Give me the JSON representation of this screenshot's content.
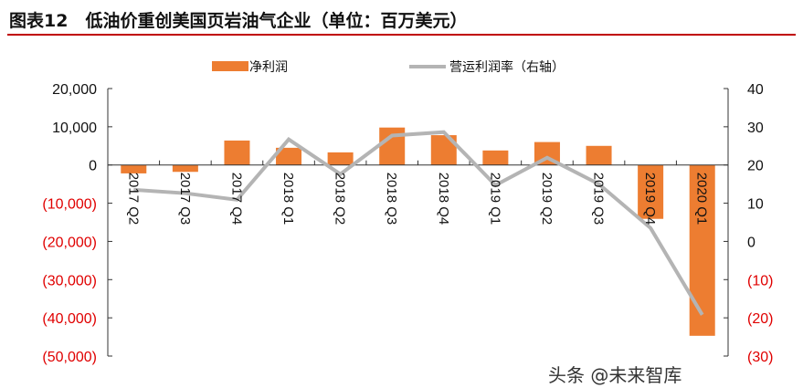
{
  "title": "图表12　低油价重创美国页岩油气企业（单位：百万美元）",
  "watermark": "头条 @未来智库",
  "colors": {
    "bar": "#ed7d31",
    "line": "#b4b4b4",
    "negative_tick": "#e00000",
    "axis": "#333333"
  },
  "chart_data": {
    "type": "bar+line",
    "categories": [
      "2017 Q2",
      "2017 Q3",
      "2017 Q4",
      "2018 Q1",
      "2018 Q2",
      "2018 Q3",
      "2018 Q4",
      "2019 Q1",
      "2019 Q2",
      "2019 Q3",
      "2019 Q4",
      "2020 Q1"
    ],
    "series": [
      {
        "name": "净利润",
        "type": "bar",
        "axis": "left",
        "values": [
          -2200,
          -1800,
          6400,
          4500,
          3300,
          9800,
          7800,
          3800,
          6000,
          5000,
          -14100,
          -44700
        ]
      },
      {
        "name": "营运利润率（右轴）",
        "type": "line",
        "axis": "right",
        "values": [
          13.5,
          12.6,
          10.9,
          26.7,
          17.6,
          27.7,
          28.6,
          14.7,
          21.9,
          15.0,
          3.5,
          -19.2
        ]
      }
    ],
    "left_axis": {
      "ylim": [
        -50000,
        20000
      ],
      "ticks": [
        20000,
        10000,
        0,
        -10000,
        -20000,
        -30000,
        -40000,
        -50000
      ],
      "tick_labels": [
        "20,000",
        "10,000",
        "0",
        "(10,000)",
        "(20,000)",
        "(30,000)",
        "(40,000)",
        "(50,000)"
      ]
    },
    "right_axis": {
      "ylim": [
        -30,
        40
      ],
      "ticks": [
        40,
        30,
        20,
        10,
        0,
        -10,
        -20,
        -30
      ],
      "tick_labels": [
        "40",
        "30",
        "20",
        "10",
        "0",
        "(10)",
        "(20)",
        "(30)"
      ]
    },
    "legend_placement": "top",
    "grid": false
  }
}
